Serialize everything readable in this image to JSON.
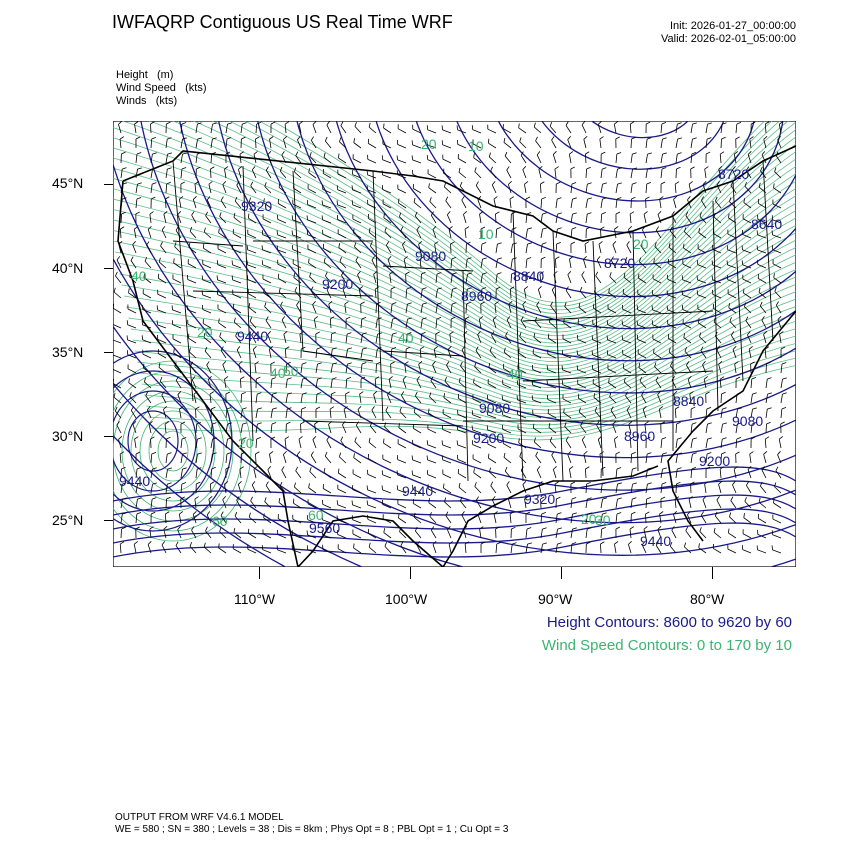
{
  "title": "IWFAQRP Contiguous US Real Time WRF",
  "init": "Init: 2026-01-27_00:00:00",
  "valid": "Valid: 2026-02-01_05:00:00",
  "fields": [
    "Height   (m)",
    "Wind Speed   (kts)",
    "Winds   (kts)"
  ],
  "latitude_labels": [
    "45°N",
    "40°N",
    "35°N",
    "30°N",
    "25°N"
  ],
  "longitude_labels": [
    "110°W",
    "100°W",
    "90°W",
    "80°W"
  ],
  "height_contour_labels": [
    "9320",
    "9080",
    "8840",
    "8720",
    "8640",
    "9200",
    "8960",
    "8720",
    "9440",
    "9080",
    "8840",
    "9080",
    "9200",
    "8960",
    "9200",
    "9440",
    "9440",
    "9320",
    "9560",
    "9440"
  ],
  "speed_contour_labels": [
    "20",
    "10",
    "40",
    "20",
    "20",
    "40",
    "20",
    "40",
    "60",
    "20",
    "30",
    "60",
    "50",
    "40",
    "10"
  ],
  "height_contours_note": "Height Contours: 8600 to 9620 by 60",
  "speed_contours_note": "Wind Speed Contours: 0 to 170 by 10",
  "colors": {
    "height": "#1a1a8c",
    "speed": "#3cb371",
    "map_lines": "#000000"
  },
  "footer_line1": "OUTPUT FROM WRF V4.6.1 MODEL",
  "footer_line2": "WE = 580 ; SN = 380 ; Levels = 38 ; Dis = 8km ; Phys Opt = 8 ; PBL Opt = 1 ; Cu Opt = 3"
}
